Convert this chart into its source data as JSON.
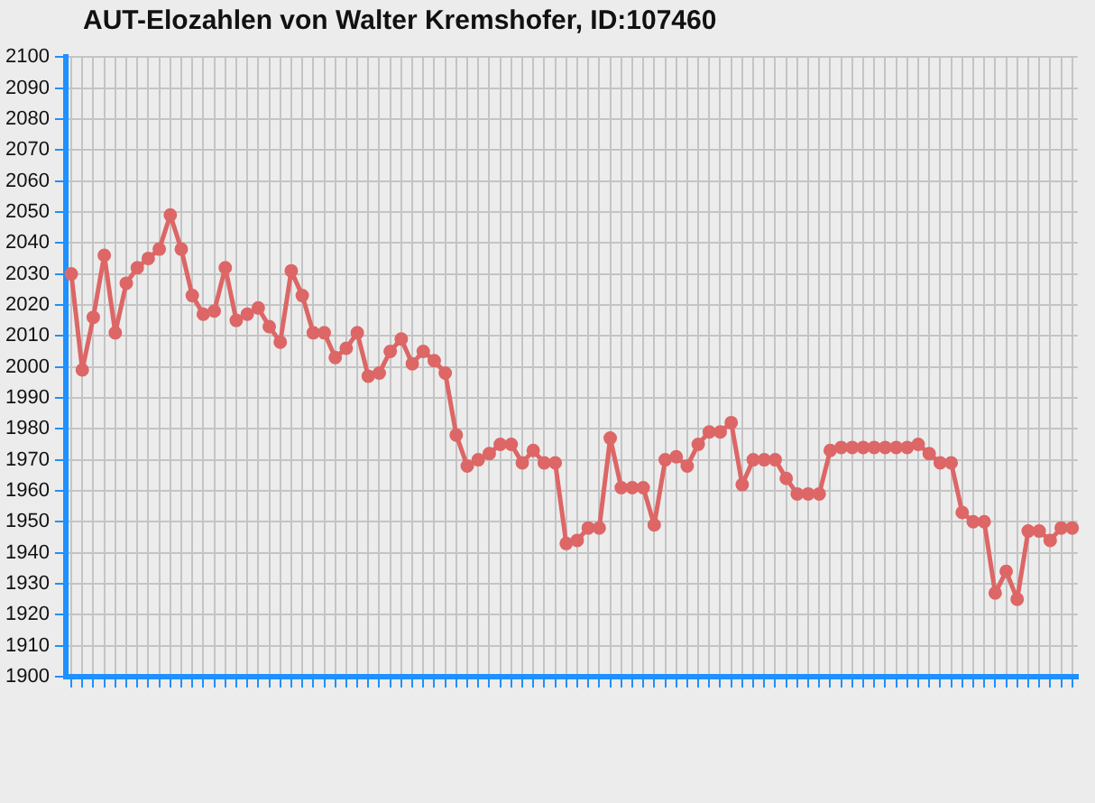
{
  "chart_data": {
    "type": "line",
    "title": "AUT-Elozahlen von Walter Kremshofer, ID:107460",
    "categories": [
      null,
      null,
      null,
      null,
      null,
      null,
      null,
      null,
      null,
      null,
      null,
      null,
      null,
      null,
      null,
      null,
      null,
      null,
      null,
      null,
      null,
      null,
      null,
      null,
      null,
      null,
      null,
      null,
      null,
      null,
      null,
      null,
      null,
      null,
      null,
      null,
      null,
      null,
      null,
      null,
      null,
      null,
      null,
      null,
      null,
      null,
      null,
      null,
      null,
      null,
      null,
      null,
      null,
      null,
      null,
      null,
      null,
      null,
      null,
      null,
      null,
      null,
      null,
      null,
      null,
      null,
      null,
      null,
      null,
      null,
      null,
      null,
      null,
      null,
      null,
      null,
      null,
      null,
      null,
      null,
      null,
      null,
      null,
      null,
      null,
      null,
      null,
      null,
      null,
      null,
      null,
      null
    ],
    "series": [
      {
        "color": "#dd6666",
        "values": [
          2030,
          1999,
          2016,
          2036,
          2011,
          2027,
          2032,
          2035,
          2038,
          2049,
          2038,
          2023,
          2017,
          2018,
          2032,
          2015,
          2017,
          2019,
          2013,
          2008,
          2031,
          2023,
          2011,
          2011,
          2003,
          2006,
          2011,
          1997,
          1998,
          2005,
          2009,
          2001,
          2005,
          2002,
          1998,
          1978,
          1968,
          1970,
          1972,
          1975,
          1975,
          1969,
          1973,
          1969,
          1969,
          1943,
          1944,
          1948,
          1948,
          1977,
          1961,
          1961,
          1961,
          1949,
          1970,
          1971,
          1968,
          1975,
          1979,
          1979,
          1982,
          1962,
          1970,
          1970,
          1970,
          1964,
          1959,
          1959,
          1959,
          1973,
          1974,
          1974,
          1974,
          1974,
          1974,
          1974,
          1974,
          1975,
          1972,
          1969,
          1969,
          1953,
          1950,
          1950,
          1927,
          1934,
          1925,
          1947,
          1947,
          1944,
          1948,
          1948
        ]
      }
    ],
    "ylim": [
      1900,
      2100
    ],
    "yticks": [
      1900,
      1910,
      1920,
      1930,
      1940,
      1950,
      1960,
      1970,
      1980,
      1990,
      2000,
      2010,
      2020,
      2030,
      2040,
      2050,
      2060,
      2070,
      2080,
      2090,
      2100
    ],
    "grid": true,
    "legend": false,
    "marker": "circle",
    "line_style": "solid"
  }
}
